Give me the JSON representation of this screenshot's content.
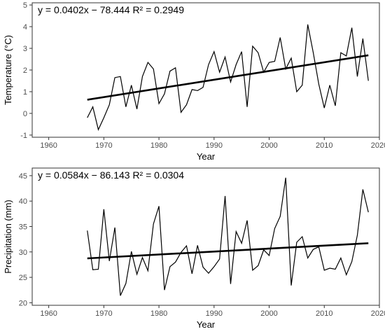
{
  "chart_data": [
    {
      "type": "line",
      "equation_label": "y = 0.0402x − 78.444   R² = 0.2949",
      "xlabel": "Year",
      "ylabel": "Temperature (°C)",
      "xlim": [
        1957,
        2020
      ],
      "ylim": [
        -1.1,
        5.1
      ],
      "xticks": [
        1960,
        1970,
        1980,
        1990,
        2000,
        2010,
        2020
      ],
      "yticks": [
        -1,
        0,
        1,
        2,
        3,
        4,
        5
      ],
      "grid": false,
      "x": [
        1967,
        1968,
        1969,
        1970,
        1971,
        1972,
        1973,
        1974,
        1975,
        1976,
        1977,
        1978,
        1979,
        1980,
        1981,
        1982,
        1983,
        1984,
        1985,
        1986,
        1987,
        1988,
        1989,
        1990,
        1991,
        1992,
        1993,
        1994,
        1995,
        1996,
        1997,
        1998,
        1999,
        2000,
        2001,
        2002,
        2003,
        2004,
        2005,
        2006,
        2007,
        2008,
        2009,
        2010,
        2011,
        2012,
        2013,
        2014,
        2015,
        2016,
        2017,
        2018
      ],
      "series": [
        {
          "values": [
            -0.2,
            0.3,
            -0.75,
            -0.2,
            0.4,
            1.65,
            1.7,
            0.3,
            1.3,
            0.2,
            1.7,
            2.35,
            2.05,
            0.45,
            0.9,
            1.95,
            2.1,
            0.05,
            0.4,
            1.1,
            1.05,
            1.2,
            2.25,
            2.85,
            1.9,
            2.6,
            1.45,
            2.25,
            2.85,
            0.3,
            3.1,
            2.8,
            1.9,
            2.35,
            2.4,
            3.5,
            2.05,
            2.55,
            1.0,
            1.3,
            4.1,
            2.8,
            1.35,
            0.25,
            1.3,
            0.35,
            2.8,
            2.65,
            3.95,
            1.7,
            3.45,
            1.5
          ],
          "color": "#000000"
        }
      ],
      "trend": {
        "slope": 0.0402,
        "intercept": -78.444,
        "x_range": [
          1967,
          2018
        ],
        "color": "#000000"
      }
    },
    {
      "type": "line",
      "equation_label": "y = 0.0584x − 86.143   R² = 0.0304",
      "xlabel": "Year",
      "ylabel": "Precipitation (mm)",
      "xlim": [
        1957,
        2020
      ],
      "ylim": [
        19.5,
        46.5
      ],
      "xticks": [
        1960,
        1970,
        1980,
        1990,
        2000,
        2010,
        2020
      ],
      "yticks": [
        20,
        25,
        30,
        35,
        40,
        45
      ],
      "grid": false,
      "x": [
        1967,
        1968,
        1969,
        1970,
        1971,
        1972,
        1973,
        1974,
        1975,
        1976,
        1977,
        1978,
        1979,
        1980,
        1981,
        1982,
        1983,
        1984,
        1985,
        1986,
        1987,
        1988,
        1989,
        1990,
        1991,
        1992,
        1993,
        1994,
        1995,
        1996,
        1997,
        1998,
        1999,
        2000,
        2001,
        2002,
        2003,
        2004,
        2005,
        2006,
        2007,
        2008,
        2009,
        2010,
        2011,
        2012,
        2013,
        2014,
        2015,
        2016,
        2017,
        2018
      ],
      "series": [
        {
          "values": [
            34.2,
            26.5,
            26.6,
            38.4,
            28.2,
            34.8,
            21.4,
            23.8,
            30.1,
            25.6,
            28.9,
            26.3,
            35.5,
            39.0,
            22.5,
            27.1,
            28.0,
            29.9,
            31.2,
            25.7,
            31.3,
            27.0,
            25.8,
            27.1,
            28.6,
            41.0,
            23.7,
            34.0,
            31.7,
            36.2,
            26.4,
            27.3,
            30.4,
            29.3,
            34.6,
            37.0,
            44.6,
            23.4,
            31.9,
            33.0,
            28.8,
            30.5,
            31.0,
            26.4,
            26.8,
            26.6,
            28.8,
            25.5,
            28.1,
            33.3,
            42.3,
            37.8
          ],
          "color": "#000000"
        }
      ],
      "trend": {
        "slope": 0.0584,
        "intercept": -86.143,
        "x_range": [
          1967,
          2018
        ],
        "color": "#000000"
      }
    }
  ]
}
